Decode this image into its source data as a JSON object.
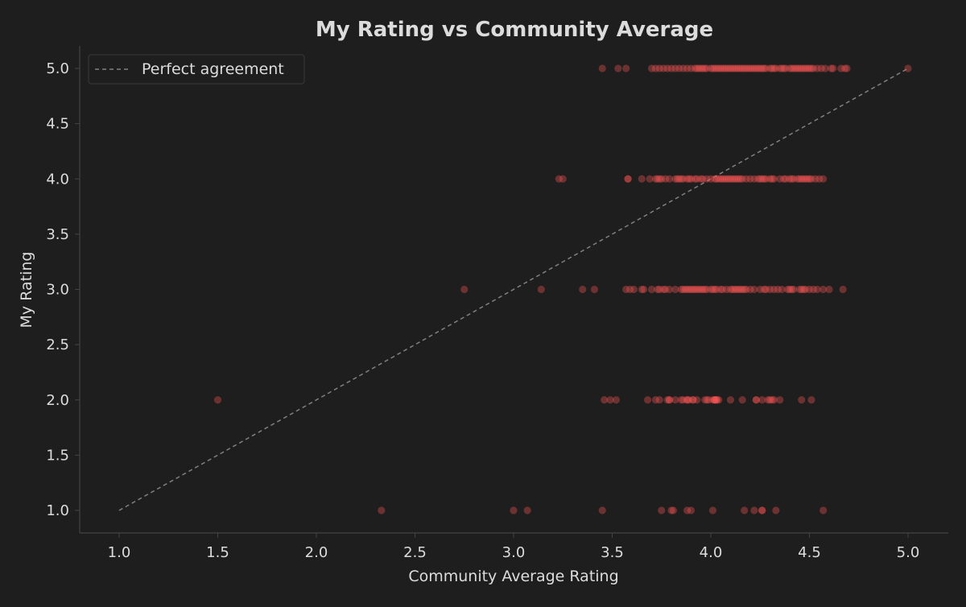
{
  "chart_data": {
    "type": "scatter",
    "title": "My Rating vs Community Average",
    "xlabel": "Community Average Rating",
    "ylabel": "My Rating",
    "xlim": [
      0.8,
      5.2
    ],
    "ylim": [
      0.8,
      5.2
    ],
    "xticks": [
      "1.0",
      "1.5",
      "2.0",
      "2.5",
      "3.0",
      "3.5",
      "4.0",
      "4.5",
      "5.0"
    ],
    "yticks": [
      "1.0",
      "1.5",
      "2.0",
      "2.5",
      "3.0",
      "3.5",
      "4.0",
      "4.5",
      "5.0"
    ],
    "grid": false,
    "legend_position": "top-left",
    "point_color": "#ff5555",
    "reference_line": {
      "label": "Perfect agreement",
      "from": [
        1,
        1
      ],
      "to": [
        5,
        5
      ],
      "color": "#808080",
      "style": "dashed"
    },
    "points_by_rating": [
      {
        "y": 1,
        "x": [
          2.33,
          3.0,
          3.07,
          3.45,
          3.75,
          3.8,
          3.81,
          3.88,
          3.9,
          4.01,
          4.17,
          4.22,
          4.26,
          4.26,
          4.33,
          4.57
        ]
      },
      {
        "y": 2,
        "x": [
          1.5,
          3.46,
          3.49,
          3.52,
          3.68,
          3.72,
          3.74,
          3.78,
          3.79,
          3.79,
          3.82,
          3.85,
          3.86,
          3.88,
          3.88,
          3.89,
          3.91,
          3.91,
          3.93,
          3.97,
          3.98,
          3.99,
          4.01,
          4.02,
          4.02,
          4.02,
          4.03,
          4.03,
          4.04,
          4.1,
          4.16,
          4.23,
          4.23,
          4.26,
          4.29,
          4.3,
          4.31,
          4.32,
          4.35,
          4.46,
          4.51
        ]
      },
      {
        "y": 3,
        "x": [
          2.75,
          3.14,
          3.35,
          3.41,
          3.57,
          3.59,
          3.61,
          3.65,
          3.66,
          3.7,
          3.73,
          3.74,
          3.76,
          3.77,
          3.79,
          3.82,
          3.85,
          3.86,
          3.87,
          3.88,
          3.89,
          3.9,
          3.91,
          3.92,
          3.93,
          3.94,
          3.95,
          3.96,
          3.97,
          3.98,
          4.0,
          4.01,
          4.02,
          4.03,
          4.05,
          4.06,
          4.08,
          4.1,
          4.11,
          4.12,
          4.13,
          4.14,
          4.15,
          4.16,
          4.17,
          4.18,
          4.2,
          4.22,
          4.25,
          4.27,
          4.28,
          4.3,
          4.32,
          4.34,
          4.36,
          4.39,
          4.4,
          4.41,
          4.42,
          4.45,
          4.46,
          4.47,
          4.48,
          4.5,
          4.52,
          4.54,
          4.57,
          4.6,
          4.67
        ]
      },
      {
        "y": 4,
        "x": [
          3.23,
          3.25,
          3.58,
          3.58,
          3.65,
          3.69,
          3.72,
          3.73,
          3.74,
          3.75,
          3.77,
          3.79,
          3.82,
          3.83,
          3.84,
          3.85,
          3.86,
          3.88,
          3.89,
          3.9,
          3.92,
          3.93,
          3.95,
          3.96,
          3.98,
          4.0,
          4.02,
          4.03,
          4.04,
          4.05,
          4.06,
          4.07,
          4.08,
          4.09,
          4.1,
          4.11,
          4.12,
          4.13,
          4.14,
          4.15,
          4.16,
          4.18,
          4.2,
          4.22,
          4.24,
          4.25,
          4.26,
          4.27,
          4.28,
          4.3,
          4.31,
          4.32,
          4.35,
          4.37,
          4.38,
          4.4,
          4.41,
          4.42,
          4.44,
          4.45,
          4.46,
          4.47,
          4.48,
          4.49,
          4.5,
          4.51,
          4.53,
          4.55,
          4.57
        ]
      },
      {
        "y": 5,
        "x": [
          3.45,
          3.53,
          3.57,
          3.7,
          3.72,
          3.74,
          3.76,
          3.78,
          3.8,
          3.82,
          3.84,
          3.86,
          3.88,
          3.9,
          3.92,
          3.93,
          3.94,
          3.95,
          3.96,
          3.97,
          3.98,
          4.0,
          4.01,
          4.02,
          4.03,
          4.04,
          4.05,
          4.06,
          4.07,
          4.08,
          4.09,
          4.1,
          4.11,
          4.12,
          4.13,
          4.14,
          4.15,
          4.16,
          4.17,
          4.18,
          4.19,
          4.2,
          4.21,
          4.22,
          4.23,
          4.24,
          4.25,
          4.26,
          4.27,
          4.28,
          4.3,
          4.31,
          4.32,
          4.33,
          4.35,
          4.36,
          4.37,
          4.38,
          4.4,
          4.41,
          4.42,
          4.43,
          4.44,
          4.45,
          4.46,
          4.47,
          4.48,
          4.49,
          4.5,
          4.51,
          4.52,
          4.54,
          4.56,
          4.58,
          4.61,
          4.62,
          4.66,
          4.68,
          4.69,
          5.0
        ]
      }
    ]
  }
}
